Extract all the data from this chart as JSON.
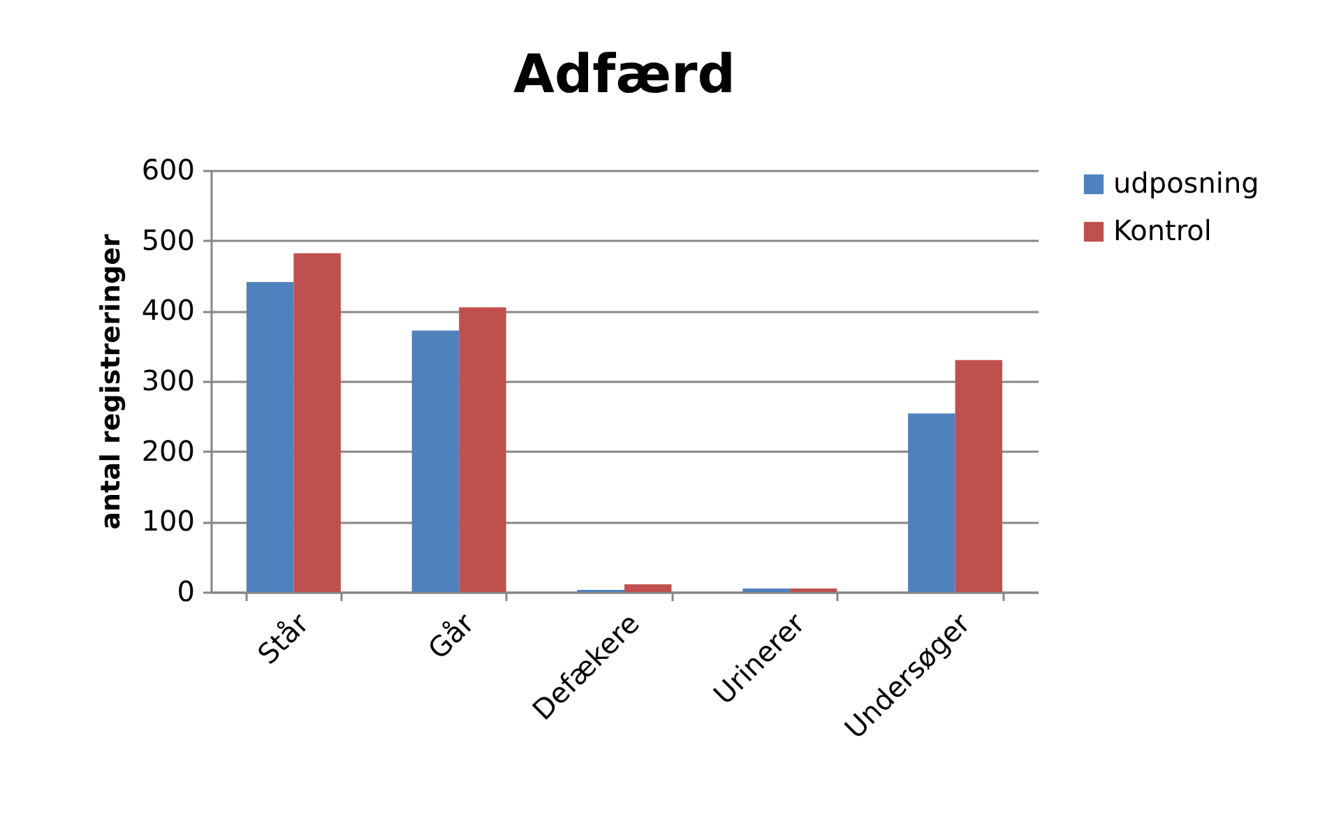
{
  "chart_data": {
    "type": "bar",
    "title": "Adfærd",
    "ylabel": "antal registreringer",
    "categories": [
      "Står",
      "Går",
      "Defækere",
      "Urinerer",
      "Undersøger"
    ],
    "series": [
      {
        "name": "udposning",
        "color": "#4f81bd",
        "values": [
          441,
          372,
          3,
          5,
          254
        ]
      },
      {
        "name": "Kontrol",
        "color": "#c0504d",
        "values": [
          482,
          405,
          11,
          5,
          330
        ]
      }
    ],
    "ylim": [
      0,
      600
    ],
    "yticks": [
      0,
      100,
      200,
      300,
      400,
      500,
      600
    ],
    "grid": "y",
    "legend": "right"
  }
}
